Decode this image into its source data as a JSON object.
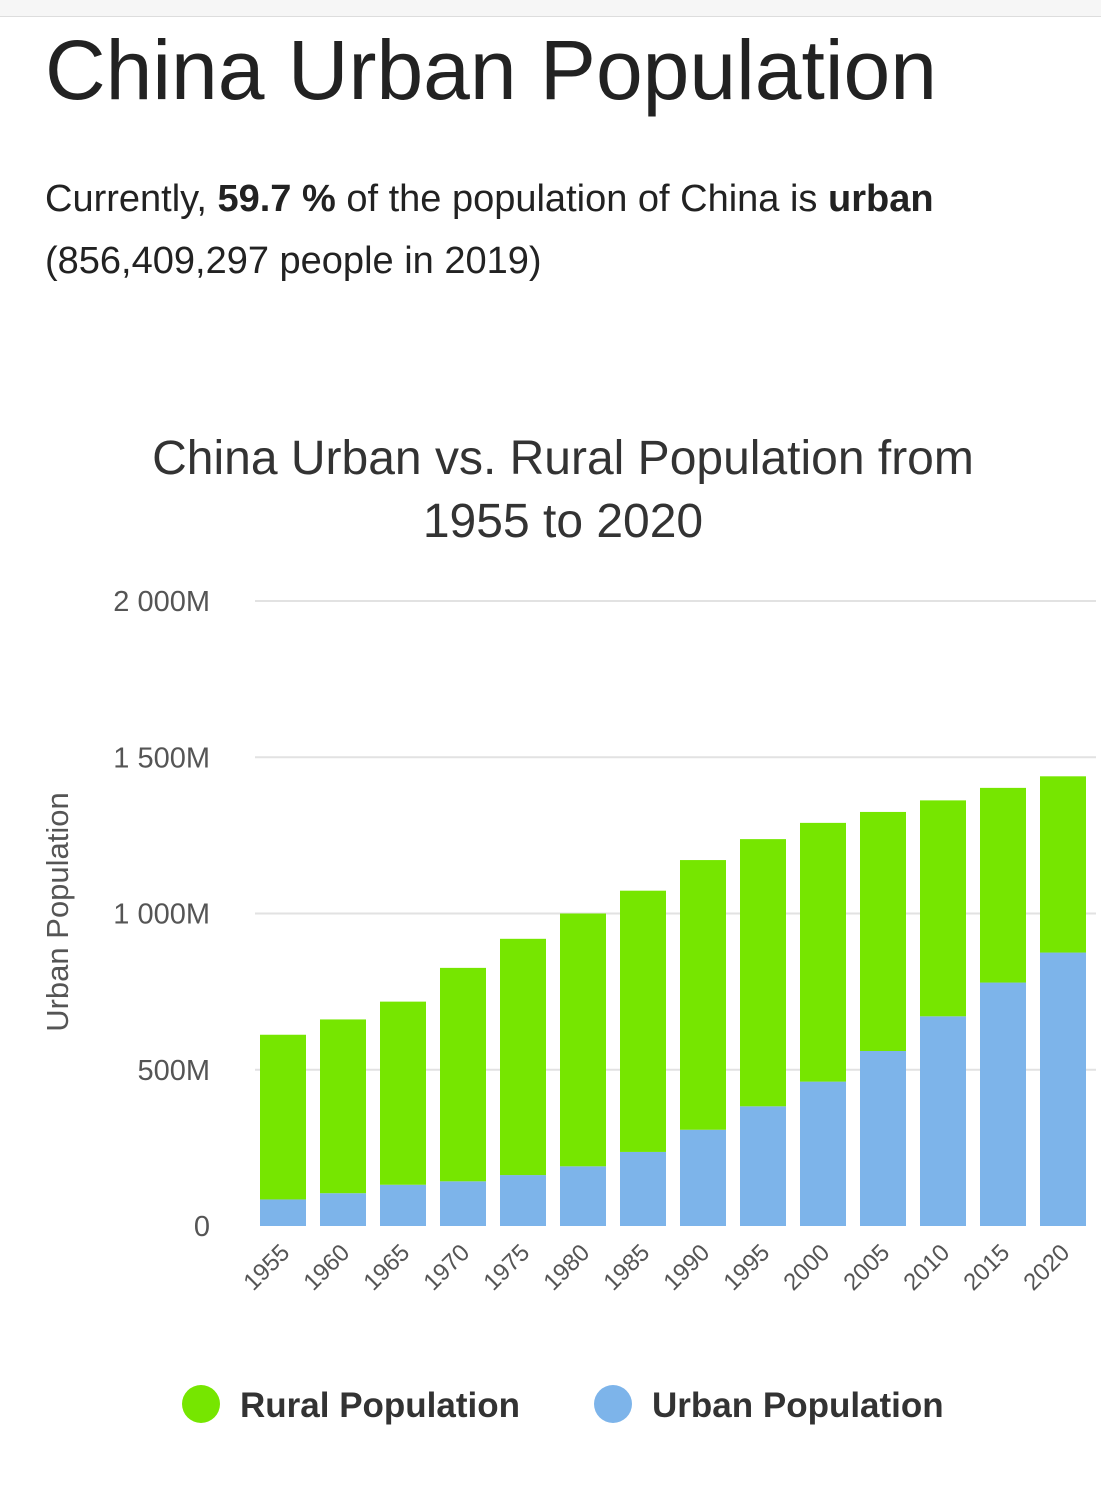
{
  "page": {
    "title": "China Urban Population",
    "summary": {
      "prefix": "Currently, ",
      "percent": "59.7 %",
      "middle": " of the population of China is ",
      "keyword": "urban",
      "detail": "(856,409,297 people in 2019)"
    }
  },
  "colors": {
    "rural": "#76e600",
    "urban": "#7db4ea"
  },
  "chart_data": {
    "type": "bar",
    "stacked": true,
    "title_lines": [
      "China Urban vs. Rural Population from",
      "1955 to 2020"
    ],
    "ylabel": "Urban Population",
    "xlabel": "",
    "ylim": [
      0,
      2000000000
    ],
    "yticks": [
      0,
      500000000,
      1000000000,
      1500000000,
      2000000000
    ],
    "ytick_labels": [
      "0",
      "500M",
      "1 000M",
      "1 500M",
      "2 000M"
    ],
    "categories": [
      "1955",
      "1960",
      "1965",
      "1970",
      "1975",
      "1980",
      "1985",
      "1990",
      "1995",
      "2000",
      "2005",
      "2010",
      "2015",
      "2020"
    ],
    "series": [
      {
        "name": "Urban Population",
        "color_key": "urban",
        "values": [
          85000000,
          105000000,
          132000000,
          143000000,
          163000000,
          191000000,
          237000000,
          308000000,
          383000000,
          462000000,
          560000000,
          671000000,
          779000000,
          875000000
        ]
      },
      {
        "name": "Rural Population",
        "color_key": "rural",
        "values": [
          527000000,
          556000000,
          586000000,
          683000000,
          756000000,
          809000000,
          836000000,
          863000000,
          855000000,
          828000000,
          765000000,
          691000000,
          623000000,
          564000000
        ]
      }
    ],
    "legend": [
      {
        "label": "Rural Population",
        "color_key": "rural"
      },
      {
        "label": "Urban Population",
        "color_key": "urban"
      }
    ],
    "legend_position": "bottom",
    "grid": true
  }
}
